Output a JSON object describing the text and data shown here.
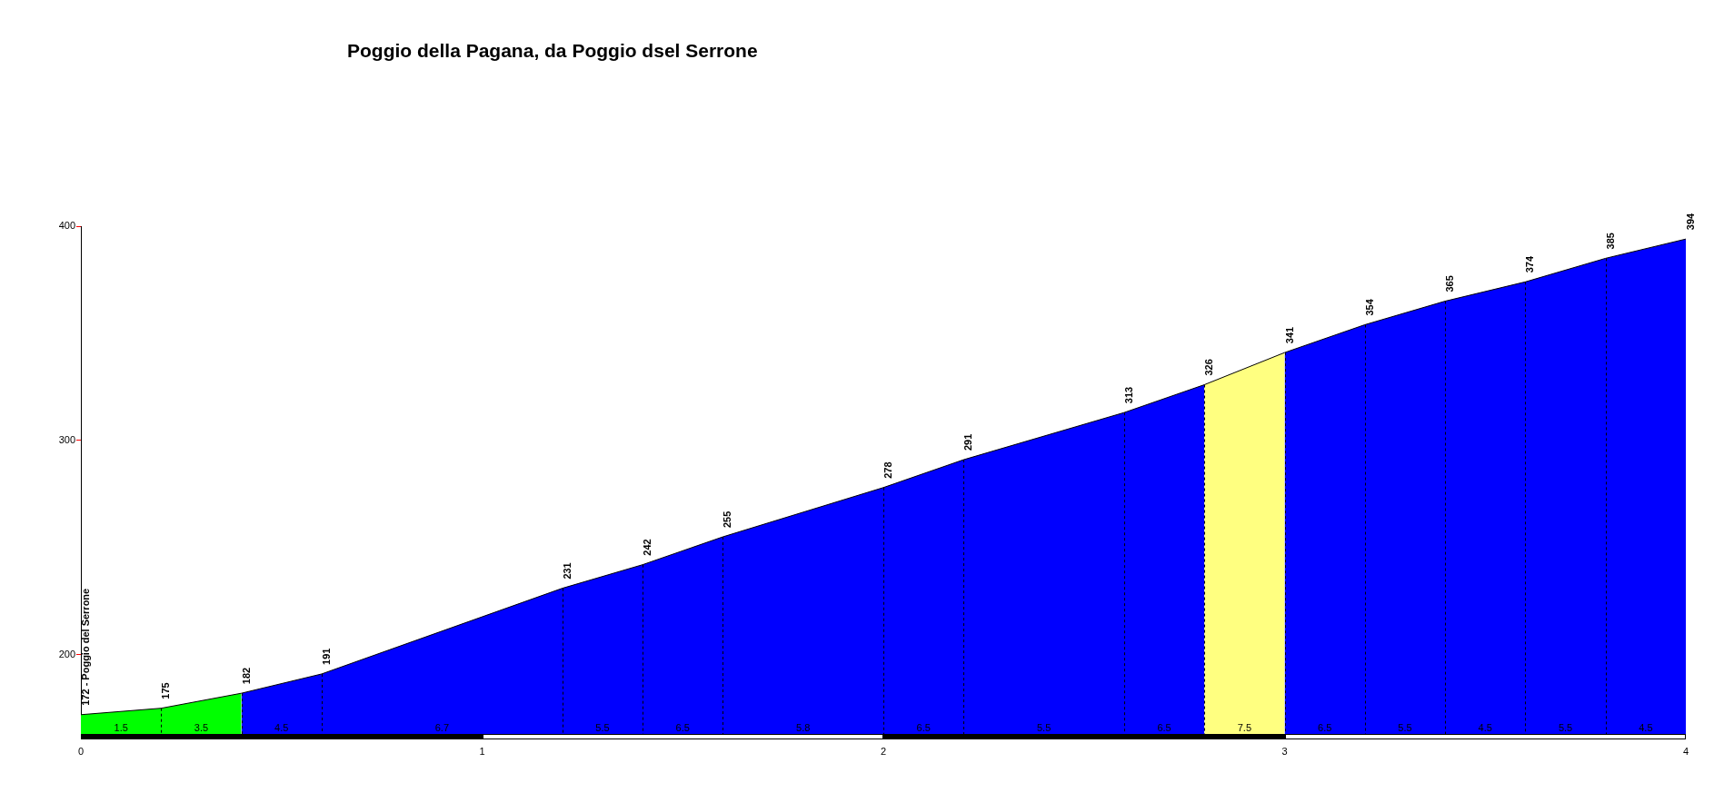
{
  "chart_data": {
    "type": "area",
    "title": "Poggio della Pagana, da Poggio dsel Serrone",
    "xlim": [
      0,
      4
    ],
    "xticks": [
      0,
      1,
      2,
      3,
      4
    ],
    "ylim": [
      163,
      400
    ],
    "yticks": [
      200,
      300,
      400
    ],
    "marker": "none",
    "series": [
      {
        "color": "#00ff00",
        "x": [
          0,
          0.2,
          0.4
        ],
        "values": [
          172,
          175,
          182
        ],
        "value_labels": [
          "172 - Poggio del Serrone",
          "175",
          "182"
        ]
      },
      {
        "color": "#0000ff",
        "x": [
          0.4,
          0.6,
          1.2,
          1.4,
          1.6,
          2.0,
          2.2,
          2.6,
          2.8
        ],
        "values": [
          182,
          191,
          231,
          242,
          255,
          278,
          291,
          313,
          326
        ],
        "value_labels": [
          null,
          "191",
          "231",
          "242",
          "255",
          "278",
          "291",
          "313",
          "326"
        ]
      },
      {
        "color": "#ffff80",
        "x": [
          2.8,
          3.0
        ],
        "values": [
          326,
          341
        ],
        "value_labels": [
          null,
          "341"
        ]
      },
      {
        "color": "#0000ff",
        "x": [
          3.0,
          3.2,
          3.4,
          3.6,
          3.8,
          4.0
        ],
        "values": [
          341,
          354,
          365,
          374,
          385,
          394
        ],
        "value_labels": [
          null,
          "354",
          "365",
          "374",
          "385",
          "394"
        ]
      }
    ],
    "annotations": [
      "1.5",
      "3.5",
      "4.5",
      "6.7",
      "5.5",
      "6.5",
      "5.8",
      "6.5",
      "5.5",
      "6.5",
      "7.5",
      "6.5",
      "5.5",
      "4.5",
      "5.5",
      "4.5"
    ]
  }
}
